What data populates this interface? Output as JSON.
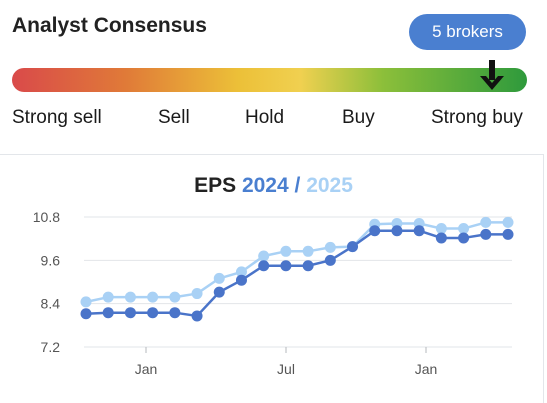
{
  "consensus": {
    "title": "Analyst Consensus",
    "brokers_label": "5  brokers",
    "levels": [
      "Strong sell",
      "Sell",
      "Hold",
      "Buy",
      "Strong buy"
    ],
    "current_level": "Strong buy",
    "marker_icon": "arrow-down-icon"
  },
  "chart": {
    "title_main": "EPS ",
    "year1": "2024",
    "separator": " / ",
    "year2": "2025"
  },
  "colors": {
    "accent": "#4a7fd0",
    "series_2024": "#4a74c9",
    "series_2025": "#a9d1f5"
  },
  "chart_data": {
    "type": "line",
    "xticks": [
      "Jan",
      "Jul",
      "Jan"
    ],
    "yticks": [
      "7.2",
      "8.4",
      "9.6",
      "10.8"
    ],
    "ylim": [
      7.2,
      11.2
    ],
    "grid": "horizontal",
    "series": [
      {
        "name": "2024",
        "values": [
          8.12,
          8.15,
          8.15,
          8.15,
          8.15,
          8.06,
          8.72,
          9.05,
          9.45,
          9.45,
          9.45,
          9.6,
          9.98,
          10.42,
          10.42,
          10.42,
          10.22,
          10.22,
          10.32,
          10.32
        ]
      },
      {
        "name": "2025",
        "values": [
          8.45,
          8.58,
          8.58,
          8.58,
          8.58,
          8.68,
          9.1,
          9.28,
          9.72,
          9.85,
          9.85,
          9.96,
          9.98,
          10.6,
          10.62,
          10.62,
          10.48,
          10.48,
          10.65,
          10.65
        ]
      }
    ]
  }
}
